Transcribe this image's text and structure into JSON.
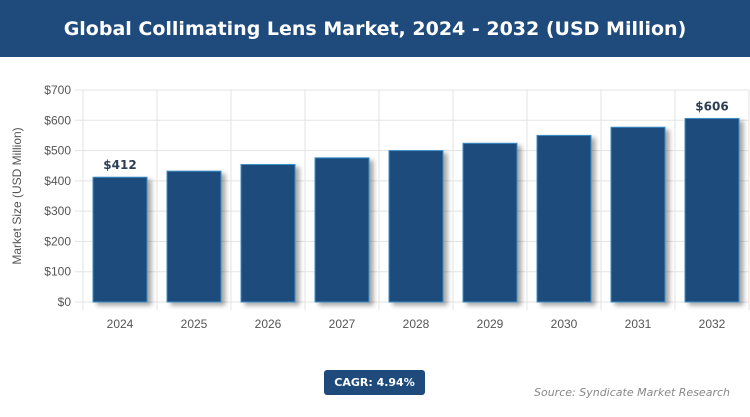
{
  "chart_data": {
    "type": "bar",
    "title": "Global Collimating Lens Market, 2024 - 2032 (USD Million)",
    "xlabel": "",
    "ylabel": "Market Size (USD Million)",
    "categories": [
      "2024",
      "2025",
      "2026",
      "2027",
      "2028",
      "2029",
      "2030",
      "2031",
      "2032"
    ],
    "values": [
      412,
      432,
      454,
      476,
      500,
      524,
      550,
      577,
      606
    ],
    "data_labels": {
      "0": "$412",
      "8": "$606"
    },
    "ylim": [
      0,
      700
    ],
    "yticks": [
      "$0",
      "$100",
      "$200",
      "$300",
      "$400",
      "$500",
      "$600",
      "$700"
    ],
    "grid": true,
    "bar_color": "#1f4b7c",
    "bar_edge_color": "#3a8fc7"
  },
  "cagr_label": "CAGR: 4.94%",
  "source": "Source: Syndicate Market Research"
}
